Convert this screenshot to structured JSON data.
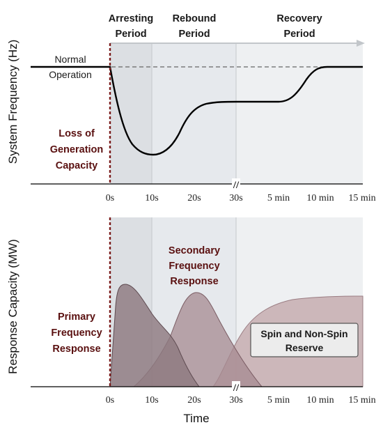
{
  "periods": [
    {
      "line1": "Arresting",
      "line2": "Period"
    },
    {
      "line1": "Rebound",
      "line2": "Period"
    },
    {
      "line1": "Recovery",
      "line2": "Period"
    }
  ],
  "axes": {
    "top_ylabel": "System Frequency (Hz)",
    "bottom_ylabel": "Response Capacity (MW)",
    "xlabel": "Time",
    "ticks": [
      "0s",
      "10s",
      "20s",
      "30s",
      "5 min",
      "10 min",
      "15 min"
    ],
    "break_mark": "//"
  },
  "annotations": {
    "normal_line1": "Normal",
    "normal_line2": "Operation",
    "loss_line1": "Loss of",
    "loss_line2": "Generation",
    "loss_line3": "Capacity",
    "primary_line1": "Primary",
    "primary_line2": "Frequency",
    "primary_line3": "Response",
    "secondary_line1": "Secondary",
    "secondary_line2": "Frequency",
    "secondary_line3": "Response",
    "reserve_line1": "Spin and Non-Spin",
    "reserve_line2": "Reserve"
  },
  "colors": {
    "arresting_shade": "#dcdfe3",
    "rebound_shade": "#e6e9ed",
    "recovery_shade": "#eef0f2",
    "loss_line": "#7a1a1a",
    "primary_fill": "#8e7a80",
    "secondary_fill": "#a58a90",
    "reserve_fill": "#c9b2b5",
    "label_dark_red": "#5a1010"
  }
}
